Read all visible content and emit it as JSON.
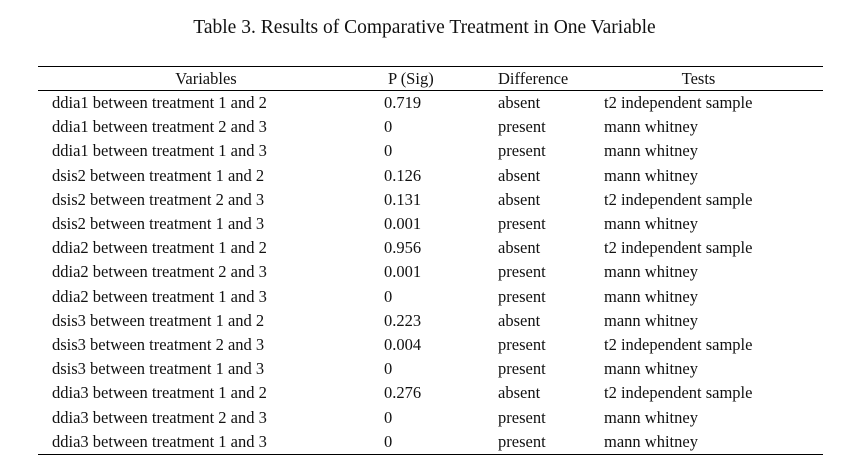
{
  "caption": "Table 3. Results of Comparative Treatment in One Variable",
  "table": {
    "headers": {
      "variables": "Variables",
      "p_sig": "P (Sig)",
      "difference": "Difference",
      "tests": "Tests"
    },
    "rows": [
      {
        "variable": "ddia1 between treatment 1 and 2",
        "p": "0.719",
        "difference": "absent",
        "test": "t2 independent sample"
      },
      {
        "variable": "ddia1 between treatment 2 and 3",
        "p": "0",
        "difference": "present",
        "test": "mann whitney"
      },
      {
        "variable": "ddia1 between treatment 1 and 3",
        "p": "0",
        "difference": "present",
        "test": "mann whitney"
      },
      {
        "variable": "dsis2 between treatment 1 and 2",
        "p": "0.126",
        "difference": "absent",
        "test": "mann whitney"
      },
      {
        "variable": "dsis2 between treatment 2 and 3",
        "p": "0.131",
        "difference": "absent",
        "test": "t2 independent sample"
      },
      {
        "variable": "dsis2 between treatment 1 and 3",
        "p": "0.001",
        "difference": "present",
        "test": "mann whitney"
      },
      {
        "variable": "ddia2 between treatment 1 and 2",
        "p": "0.956",
        "difference": "absent",
        "test": "t2 independent sample"
      },
      {
        "variable": "ddia2 between treatment 2 and 3",
        "p": "0.001",
        "difference": "present",
        "test": "mann whitney"
      },
      {
        "variable": "ddia2 between treatment 1 and 3",
        "p": "0",
        "difference": "present",
        "test": "mann whitney"
      },
      {
        "variable": "dsis3 between treatment 1 and 2",
        "p": "0.223",
        "difference": "absent",
        "test": "mann whitney"
      },
      {
        "variable": "dsis3 between treatment 2 and 3",
        "p": "0.004",
        "difference": "present",
        "test": "t2 independent sample"
      },
      {
        "variable": "dsis3 between treatment 1 and 3",
        "p": "0",
        "difference": "present",
        "test": "mann whitney"
      },
      {
        "variable": "ddia3 between treatment 1 and 2",
        "p": "0.276",
        "difference": "absent",
        "test": "t2 independent sample"
      },
      {
        "variable": "ddia3 between treatment 2 and 3",
        "p": "0",
        "difference": "present",
        "test": "mann whitney"
      },
      {
        "variable": "ddia3 between treatment 1 and 3",
        "p": "0",
        "difference": "present",
        "test": "mann whitney"
      }
    ]
  }
}
